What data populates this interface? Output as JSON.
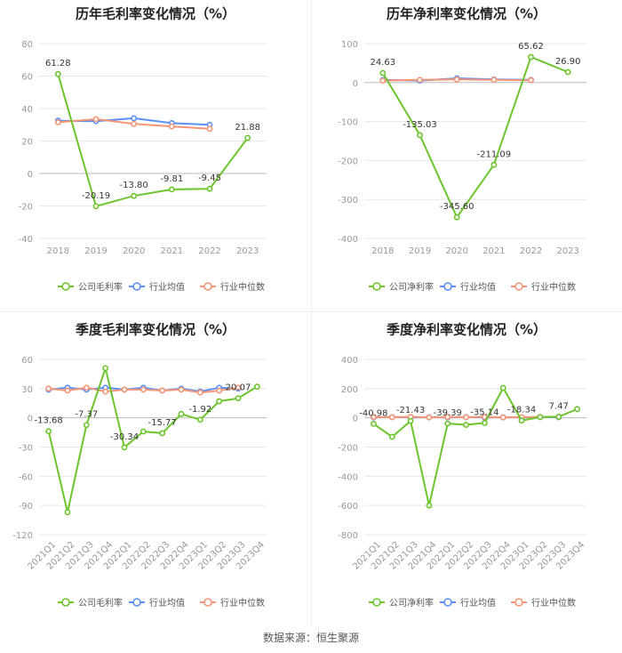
{
  "source": "数据来源：恒生聚源",
  "colors": {
    "company": "#6cc52c",
    "avg": "#5b8ff9",
    "median": "#f59575",
    "grid": "#e8e8e8",
    "axis": "#999999",
    "label": "#333333"
  },
  "chart_data": [
    {
      "type": "line",
      "title": "历年毛利率变化情况（%）",
      "categories": [
        "2018",
        "2019",
        "2020",
        "2021",
        "2022",
        "2023"
      ],
      "ylim": [
        -40,
        80
      ],
      "yticks": [
        -40,
        -20,
        0,
        20,
        40,
        60,
        80
      ],
      "legend": [
        "公司毛利率",
        "行业均值",
        "行业中位数"
      ],
      "series": [
        {
          "name": "公司毛利率",
          "values": [
            61.28,
            -20.19,
            -13.8,
            -9.81,
            -9.45,
            21.88
          ],
          "labels": [
            "61.28",
            "-20.19",
            "-13.80",
            "-9.81",
            "-9.45",
            "21.88"
          ]
        },
        {
          "name": "行业均值",
          "values": [
            32.5,
            32.2,
            34.0,
            31.0,
            30.0,
            null
          ]
        },
        {
          "name": "行业中位数",
          "values": [
            31.5,
            33.5,
            30.5,
            29.0,
            27.5,
            null
          ]
        }
      ]
    },
    {
      "type": "line",
      "title": "历年净利率变化情况（%）",
      "categories": [
        "2018",
        "2019",
        "2020",
        "2021",
        "2022",
        "2023"
      ],
      "ylim": [
        -400,
        100
      ],
      "yticks": [
        -400,
        -300,
        -200,
        -100,
        0,
        100
      ],
      "legend": [
        "公司净利率",
        "行业均值",
        "行业中位数"
      ],
      "series": [
        {
          "name": "公司净利率",
          "values": [
            24.63,
            -135.03,
            -345.6,
            -211.09,
            65.62,
            26.9
          ],
          "labels": [
            "24.63",
            "-135.03",
            "-345.60",
            "-211.09",
            "65.62",
            "26.90"
          ]
        },
        {
          "name": "行业均值",
          "values": [
            7,
            5,
            11,
            8,
            7,
            null
          ]
        },
        {
          "name": "行业中位数",
          "values": [
            5,
            7,
            8,
            7,
            6,
            null
          ]
        }
      ]
    },
    {
      "type": "line",
      "title": "季度毛利率变化情况（%）",
      "categories": [
        "2021Q1",
        "2021Q2",
        "2021Q3",
        "2021Q4",
        "2022Q1",
        "2022Q2",
        "2022Q3",
        "2022Q4",
        "2023Q1",
        "2023Q2",
        "2023Q3",
        "2023Q4"
      ],
      "ylim": [
        -120,
        60
      ],
      "yticks": [
        -120,
        -90,
        -60,
        -30,
        0,
        30,
        60
      ],
      "legend": [
        "公司毛利率",
        "行业均值",
        "行业中位数"
      ],
      "series": [
        {
          "name": "公司毛利率",
          "values": [
            -13.68,
            -97,
            -7.37,
            51,
            -30.34,
            -14,
            -15.77,
            4,
            -1.92,
            17,
            20.07,
            32
          ],
          "labels": [
            "-13.68",
            "",
            "-7.37",
            "",
            "-30.34",
            "",
            "-15.77",
            "",
            "-1.92",
            "",
            "20.07",
            ""
          ]
        },
        {
          "name": "行业均值",
          "values": [
            29,
            31,
            29,
            31,
            29,
            31,
            28,
            30,
            27,
            31,
            30,
            null
          ]
        },
        {
          "name": "行业中位数",
          "values": [
            30,
            28,
            31,
            27,
            29,
            29,
            28,
            29,
            26,
            28,
            31,
            null
          ]
        }
      ]
    },
    {
      "type": "line",
      "title": "季度净利率变化情况（%）",
      "categories": [
        "2021Q1",
        "2021Q2",
        "2021Q3",
        "2021Q4",
        "2022Q1",
        "2022Q2",
        "2022Q3",
        "2022Q4",
        "2023Q1",
        "2023Q2",
        "2023Q3",
        "2023Q4"
      ],
      "ylim": [
        -800,
        400
      ],
      "yticks": [
        -800,
        -600,
        -400,
        -200,
        0,
        200,
        400
      ],
      "legend": [
        "公司净利率",
        "行业均值",
        "行业中位数"
      ],
      "series": [
        {
          "name": "公司净利率",
          "values": [
            -40.98,
            -130,
            -21.43,
            -600,
            -39.39,
            -48,
            -35.14,
            205,
            -18.34,
            5,
            7.47,
            60
          ],
          "labels": [
            "-40.98",
            "",
            "-21.43",
            "",
            "-39.39",
            "",
            "-35.14",
            "",
            "-18.34",
            "",
            "7.47",
            ""
          ]
        },
        {
          "name": "行业均值",
          "values": [
            3,
            5,
            2,
            4,
            3,
            5,
            2,
            4,
            3,
            5,
            4,
            null
          ]
        },
        {
          "name": "行业中位数",
          "values": [
            6,
            4,
            7,
            3,
            6,
            4,
            7,
            3,
            5,
            6,
            7,
            null
          ]
        }
      ]
    }
  ]
}
